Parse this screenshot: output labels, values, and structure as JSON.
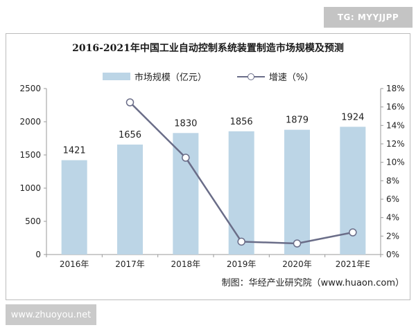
{
  "watermark_top": "TG: MYYJJPP",
  "watermark_bottom": "www.zhuoyou.net",
  "source_note": "制图：华经产业研究院（www.huaon.com）",
  "colors": {
    "bar": "#bcd5e6",
    "line": "#6a6d88",
    "axis": "#9a9a9a"
  },
  "chart_data": {
    "type": "bar",
    "title": "2016-2021年中国工业自动控制系统装置制造市场规模及预测",
    "categories": [
      "2016年",
      "2017年",
      "2018年",
      "2019年",
      "2020年",
      "2021年E"
    ],
    "series": [
      {
        "name": "市场规模（亿元）",
        "type": "bar",
        "axis": "left",
        "values": [
          1421,
          1656,
          1830,
          1856,
          1879,
          1924
        ]
      },
      {
        "name": "增速（%）",
        "type": "line",
        "axis": "right",
        "values": [
          null,
          16.5,
          10.5,
          1.4,
          1.2,
          2.4
        ]
      }
    ],
    "y_left": {
      "range": [
        0,
        2500
      ],
      "ticks": [
        "0",
        "500",
        "1000",
        "1500",
        "2000",
        "2500"
      ]
    },
    "y_right": {
      "range": [
        0,
        18
      ],
      "ticks": [
        "0%",
        "2%",
        "4%",
        "6%",
        "8%",
        "10%",
        "12%",
        "14%",
        "16%",
        "18%"
      ]
    },
    "data_labels": [
      "1421",
      "1656",
      "1830",
      "1856",
      "1879",
      "1924"
    ],
    "grid": false,
    "legend_position": "top"
  }
}
